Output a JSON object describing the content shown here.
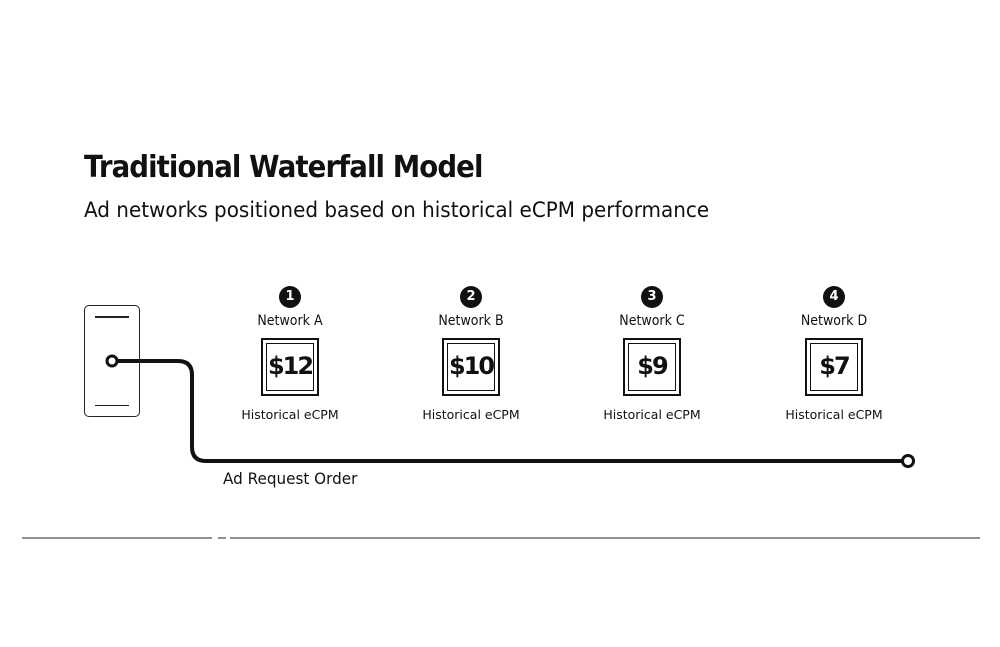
{
  "title": "Traditional Waterfall Model",
  "subtitle": "Ad networks positioned based on historical eCPM performance",
  "networks": [
    {
      "order": "1",
      "name": "Network A",
      "price": "$12",
      "caption": "Historical eCPM"
    },
    {
      "order": "2",
      "name": "Network B",
      "price": "$10",
      "caption": "Historical eCPM"
    },
    {
      "order": "3",
      "name": "Network C",
      "price": "$9",
      "caption": "Historical eCPM"
    },
    {
      "order": "4",
      "name": "Network D",
      "price": "$7",
      "caption": "Historical eCPM"
    }
  ],
  "order_label": "Ad Request Order",
  "colors": {
    "ink": "#111111",
    "background": "#ffffff"
  }
}
